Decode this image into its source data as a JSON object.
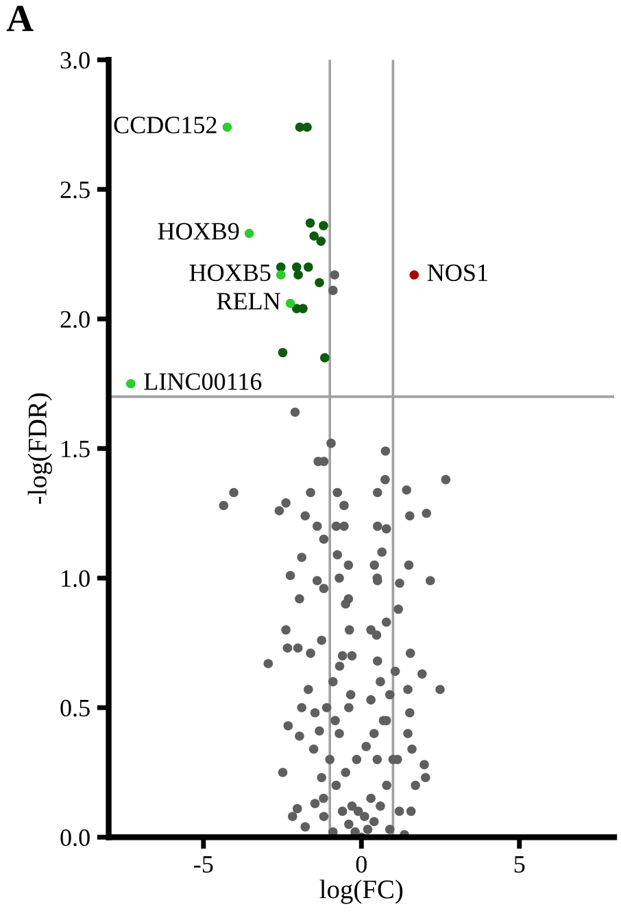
{
  "chart_data": {
    "type": "scatter",
    "title": "A",
    "xlabel": "log(FC)",
    "ylabel": "-log(FDR)",
    "xlim": [
      -8,
      8
    ],
    "xticks": [
      {
        "value": -5,
        "label": "-5"
      },
      0,
      5
    ],
    "ylim": [
      0,
      3.0
    ],
    "yticks": [
      {
        "value": 0,
        "label": "0.0"
      },
      0.5,
      {
        "value": 1,
        "label": "1.0"
      },
      1.5,
      {
        "value": 2,
        "label": "2.0"
      },
      2.5,
      {
        "value": 3,
        "label": "3.0"
      }
    ],
    "grid": false,
    "legend": false,
    "marker": "circle",
    "ref_lines": [
      {
        "axis": "x",
        "value": -1,
        "color": "#a0a0a0"
      },
      {
        "axis": "x",
        "value": 1,
        "color": "#a0a0a0"
      },
      {
        "axis": "y",
        "value": 1.7,
        "color": "#a0a0a0"
      }
    ],
    "series": [
      {
        "color": "#5f5f5f",
        "x": [
          -2.1,
          -0.96,
          0.76,
          -1.37,
          -1.19,
          2.67,
          0.75,
          -4.04,
          -4.36,
          -1.61,
          -0.76,
          1.43,
          0.51,
          -2.6,
          -2.39,
          -1.78,
          -0.55,
          2.06,
          1.53,
          0.79,
          0.51,
          -1.4,
          -0.55,
          -1.19,
          -1.89,
          -0.76,
          -0.41,
          0.41,
          1.5,
          2.18,
          -2.25,
          -1.4,
          0.51,
          1.21,
          -1.96,
          -1.19,
          -0.41,
          1.17,
          -2.39,
          0.79,
          -0.38,
          0.48,
          -2.34,
          -2.01,
          -2.95,
          -1.26,
          1.55,
          1.92,
          2.49,
          1.47,
          -1.61,
          -0.69,
          0.51,
          1.07,
          -1.68,
          -1.89,
          -1.47,
          -0.34,
          0.3,
          1.53,
          -2.32,
          -1.96,
          -1.33,
          -0.83,
          0.79,
          1.47,
          -1.51,
          1.6,
          -2.49,
          1.99,
          2.03,
          1.14,
          -1.26,
          1.71,
          -2.03,
          -2.18,
          -1.78,
          -1.47,
          -1.19,
          1.57,
          1.36,
          -1.0,
          -0.8,
          -0.6,
          -0.4,
          -0.2,
          0,
          0.2,
          0.4,
          0.6,
          0.8,
          1.0,
          -1.1,
          -0.9,
          -0.7,
          -0.5,
          -0.3,
          0.3,
          0.5,
          0.7,
          0.9,
          -0.6,
          -0.4,
          0.4,
          0.6,
          -0.5,
          -0.3,
          0.3,
          0.5,
          -0.7,
          -0.8,
          0.65,
          -0.15,
          0.15,
          -1.2,
          1.2,
          -0.9,
          0.9,
          -0.1,
          0.1,
          -0.85,
          -0.9
        ],
        "values": [
          1.64,
          1.52,
          1.49,
          1.45,
          1.45,
          1.38,
          1.38,
          1.33,
          1.28,
          1.33,
          1.33,
          1.34,
          1.33,
          1.26,
          1.29,
          1.24,
          1.28,
          1.25,
          1.24,
          1.19,
          1.2,
          1.2,
          1.2,
          1.15,
          1.08,
          1.09,
          1.05,
          1.05,
          1.05,
          0.99,
          1.01,
          0.99,
          0.99,
          0.98,
          0.92,
          0.96,
          0.92,
          0.88,
          0.8,
          0.83,
          0.8,
          0.78,
          0.73,
          0.73,
          0.67,
          0.76,
          0.71,
          0.63,
          0.57,
          0.57,
          0.71,
          0.66,
          0.68,
          0.64,
          0.57,
          0.5,
          0.48,
          0.55,
          0.53,
          0.48,
          0.43,
          0.39,
          0.41,
          0.45,
          0.45,
          0.4,
          0.34,
          0.34,
          0.25,
          0.28,
          0.23,
          0.3,
          0.23,
          0.2,
          0.11,
          0.08,
          0.04,
          0.13,
          0.08,
          0.1,
          0.01,
          0.3,
          0.2,
          0.1,
          0.05,
          0.02,
          0.0,
          0.03,
          0.06,
          0.12,
          0.2,
          0.3,
          0.5,
          0.6,
          0.4,
          0.25,
          0.12,
          0.15,
          0.3,
          0.45,
          0.55,
          0.7,
          0.5,
          0.4,
          0.6,
          0.9,
          0.7,
          0.8,
          1.0,
          1.0,
          1.2,
          1.1,
          0.3,
          0.35,
          0.15,
          0.1,
          0.02,
          0.03,
          0.1,
          0.08,
          2.17,
          2.11
        ]
      },
      {
        "color": "#0d5c0d",
        "x": [
          -1.95,
          -1.72,
          -1.62,
          -1.2,
          -1.5,
          -1.28,
          -2.55,
          -2.05,
          -1.68,
          -2.0,
          -1.33,
          -2.05,
          -1.85,
          -2.49,
          -1.16
        ],
        "values": [
          2.74,
          2.74,
          2.37,
          2.36,
          2.32,
          2.3,
          2.2,
          2.2,
          2.2,
          2.17,
          2.14,
          2.04,
          2.04,
          1.87,
          1.85
        ]
      },
      {
        "color": "#2ecc2e",
        "x": [
          -4.25,
          -3.55,
          -2.55,
          -2.25,
          -7.3
        ],
        "values": [
          2.74,
          2.33,
          2.17,
          2.06,
          1.75
        ]
      },
      {
        "color": "#b00000",
        "x": [
          1.67
        ],
        "values": [
          2.17
        ]
      }
    ],
    "annotations": [
      {
        "text": "CCDC152",
        "x": -4.25,
        "y": 2.74
      },
      {
        "text": "HOXB9",
        "x": -3.55,
        "y": 2.33
      },
      {
        "text": "HOXB5",
        "x": -2.55,
        "y": 2.17
      },
      {
        "text": "RELN",
        "x": -2.25,
        "y": 2.06
      },
      {
        "text": "LINC00116",
        "x": -7.3,
        "y": 1.75
      },
      {
        "text": "NOS1",
        "x": 1.67,
        "y": 2.17
      }
    ]
  }
}
